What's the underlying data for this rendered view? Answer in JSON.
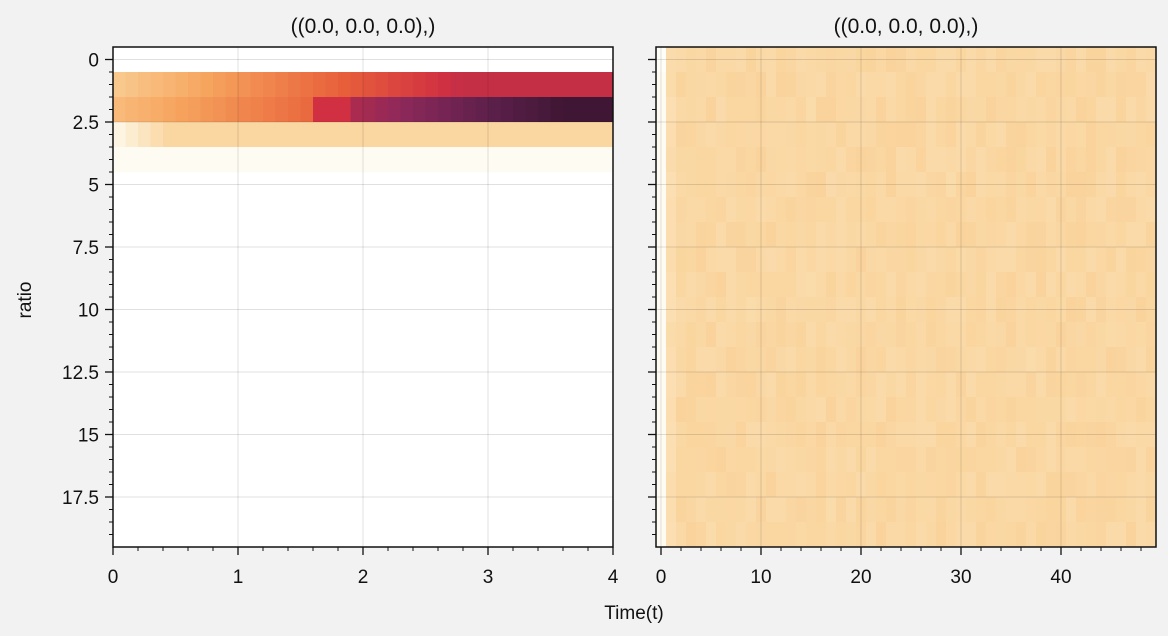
{
  "figure": {
    "background": "#f2f2f2",
    "xlabel": "Time(t)"
  },
  "chart_data": [
    {
      "type": "heatmap",
      "title": "((0.0, 0.0, 0.0),)",
      "xlabel": "Time(t)",
      "ylabel": "ratio",
      "xlim": [
        0,
        4
      ],
      "ylim": [
        19.5,
        -0.5
      ],
      "y_inverted": true,
      "xticks": [
        0,
        1,
        2,
        3,
        4
      ],
      "xtick_labels": [
        "0",
        "1",
        "2",
        "3",
        "4"
      ],
      "yticks": [
        0,
        2.5,
        5,
        7.5,
        10,
        12.5,
        15,
        17.5
      ],
      "ytick_labels": [
        "0",
        "2.5",
        "5",
        "7.5",
        "10",
        "12.5",
        "15",
        "17.5"
      ],
      "grid": true,
      "colormap": "rocket_r (white → orange → red → dark purple)",
      "columns": 40,
      "rows_described": [
        {
          "row": 1,
          "description": "light orange at t=0.1 ramping to red by t≈3"
        },
        {
          "row": 2,
          "description": "orange at t=0.1 peaking red near t≈1.8, then dark purple through t=4"
        },
        {
          "row": 3,
          "description": "pale to light orange, roughly constant"
        },
        {
          "row": 4,
          "description": "near-white faint yellow"
        },
        {
          "row": "5-19",
          "description": "white (zero)"
        }
      ]
    },
    {
      "type": "heatmap",
      "title": "((0.0, 0.0, 0.0),)",
      "xlabel": "",
      "ylabel": "",
      "xlim": [
        -0.5,
        49.5
      ],
      "ylim": [
        19.5,
        -0.5
      ],
      "y_inverted": true,
      "xticks": [
        0,
        10,
        20,
        30,
        40
      ],
      "xtick_labels": [
        "0",
        "10",
        "20",
        "30",
        "40"
      ],
      "y_tick_labels_shown": false,
      "grid": true,
      "colormap": "rocket_r",
      "description": "nearly uniform light orange field (about #f6c98e) with small per-cell noise; column 0 pale"
    }
  ]
}
